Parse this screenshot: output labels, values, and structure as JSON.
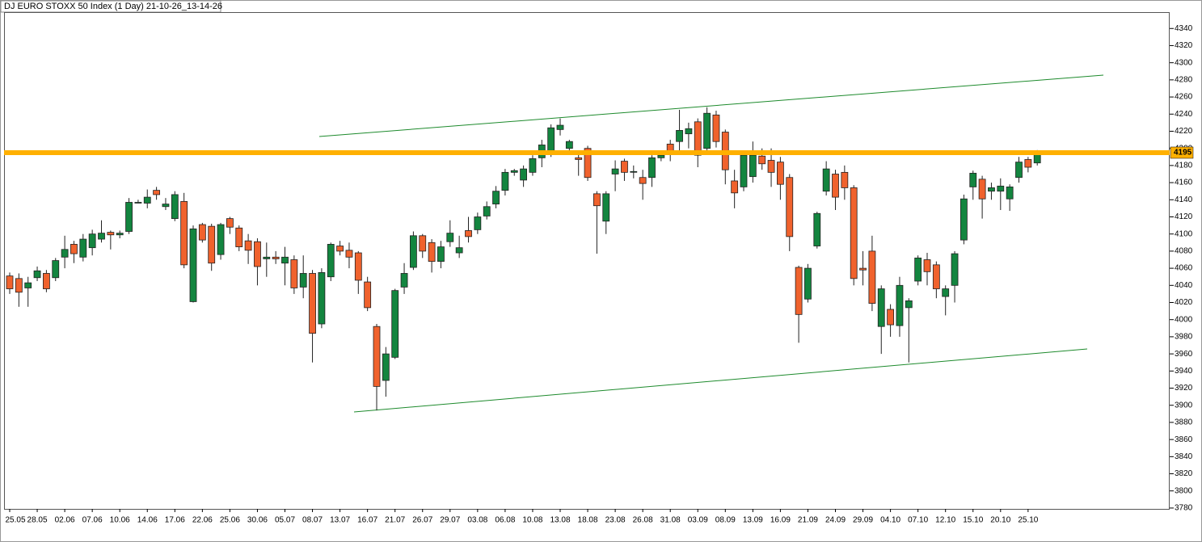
{
  "chart_data": {
    "type": "candlestick",
    "title": "DJ EURO STOXX 50 Index (1 Day) 21-10-26_13-14-26",
    "categories": [
      "25.05",
      null,
      null,
      "28.05",
      null,
      null,
      "02.06",
      null,
      null,
      "07.06",
      null,
      null,
      "10.06",
      null,
      null,
      "14.06",
      null,
      null,
      "17.06",
      null,
      null,
      "22.06",
      null,
      null,
      "25.06",
      null,
      null,
      "30.06",
      null,
      null,
      "05.07",
      null,
      null,
      "08.07",
      null,
      null,
      "13.07",
      null,
      null,
      "16.07",
      null,
      null,
      "21.07",
      null,
      null,
      "26.07",
      null,
      null,
      "29.07",
      null,
      null,
      "03.08",
      null,
      null,
      "06.08",
      null,
      null,
      "10.08",
      null,
      null,
      "13.08",
      null,
      null,
      "18.08",
      null,
      null,
      "23.08",
      null,
      null,
      "26.08",
      null,
      null,
      "31.08",
      null,
      null,
      "03.09",
      null,
      null,
      "08.09",
      null,
      null,
      "13.09",
      null,
      null,
      "16.09",
      null,
      null,
      "21.09",
      null,
      null,
      "24.09",
      null,
      null,
      "29.09",
      null,
      null,
      "04.10",
      null,
      null,
      "07.10",
      null,
      null,
      "12.10",
      null,
      null,
      "15.10",
      null,
      null,
      "20.10",
      null,
      null,
      "25.10",
      null
    ],
    "open": [
      4051,
      4048,
      4037,
      4049,
      4054,
      4049,
      4073,
      4088,
      4073,
      4084,
      4094,
      4102,
      4099,
      4103,
      4137,
      4136,
      4151,
      4132,
      4118,
      4138,
      4021,
      4111,
      4109,
      4076,
      4118,
      4107,
      4092,
      4091,
      4071,
      4073,
      4066,
      4070,
      4038,
      4054,
      3995,
      4050,
      4086,
      4081,
      4078,
      4044,
      3992,
      3929,
      3956,
      4038,
      4061,
      4098,
      4090,
      4068,
      4091,
      4078,
      4104,
      4105,
      4121,
      4135,
      4151,
      4172,
      4163,
      4172,
      4189,
      4197,
      4222,
      4200,
      4189,
      4200,
      4147,
      4115,
      4170,
      4185,
      4173,
      4166,
      4166,
      4189,
      4205,
      4208,
      4217,
      4231,
      4200,
      4239,
      4219,
      4162,
      4155,
      4167,
      4191,
      4186,
      4184,
      4166,
      4061,
      4024,
      4086,
      4150,
      4170,
      4172,
      4154,
      4060,
      4080,
      3992,
      4012,
      3993,
      4014,
      4045,
      4070,
      4064,
      4027,
      4040,
      4093,
      4155,
      4164,
      4150,
      4150,
      4141,
      4166,
      4187,
      4183
    ],
    "high": [
      4055,
      4054,
      4050,
      4062,
      4058,
      4072,
      4098,
      4092,
      4100,
      4105,
      4116,
      4104,
      4104,
      4142,
      4140,
      4152,
      4155,
      4142,
      4150,
      4148,
      4110,
      4113,
      4112,
      4113,
      4120,
      4110,
      4100,
      4095,
      4090,
      4080,
      4085,
      4075,
      4075,
      4058,
      4060,
      4090,
      4092,
      4090,
      4080,
      4050,
      3995,
      3968,
      4036,
      4066,
      4103,
      4100,
      4094,
      4092,
      4116,
      4098,
      4120,
      4125,
      4138,
      4156,
      4176,
      4176,
      4180,
      4192,
      4210,
      4228,
      4235,
      4210,
      4196,
      4203,
      4150,
      4150,
      4186,
      4188,
      4180,
      4175,
      4192,
      4195,
      4210,
      4245,
      4230,
      4235,
      4248,
      4244,
      4222,
      4175,
      4195,
      4208,
      4200,
      4200,
      4190,
      4170,
      4063,
      4065,
      4126,
      4185,
      4175,
      4180,
      4157,
      4080,
      4098,
      4040,
      4018,
      4050,
      4025,
      4075,
      4078,
      4068,
      4040,
      4080,
      4146,
      4174,
      4168,
      4160,
      4165,
      4158,
      4190,
      4190,
      4198
    ],
    "low": [
      4030,
      4015,
      4015,
      4045,
      4032,
      4045,
      4060,
      4066,
      4068,
      4075,
      4090,
      4082,
      4095,
      4100,
      4136,
      4130,
      4140,
      4128,
      4115,
      4060,
      4020,
      4090,
      4057,
      4070,
      4100,
      4080,
      4065,
      4040,
      4050,
      4065,
      4040,
      4030,
      4025,
      3950,
      3990,
      4045,
      4075,
      4060,
      4030,
      4010,
      3894,
      3910,
      3954,
      4030,
      4058,
      4072,
      4055,
      4060,
      4085,
      4072,
      4090,
      4100,
      4117,
      4130,
      4145,
      4168,
      4155,
      4168,
      4178,
      4190,
      4215,
      4195,
      4168,
      4162,
      4077,
      4100,
      4150,
      4162,
      4165,
      4140,
      4155,
      4185,
      4185,
      4195,
      4200,
      4178,
      4195,
      4201,
      4158,
      4130,
      4150,
      4160,
      4175,
      4155,
      4140,
      4080,
      3973,
      4020,
      4083,
      4145,
      4128,
      4140,
      4040,
      4040,
      4010,
      3960,
      3980,
      3980,
      3950,
      4040,
      4040,
      4025,
      4005,
      4020,
      4088,
      4140,
      4118,
      4140,
      4128,
      4127,
      4160,
      4172,
      4180
    ],
    "close": [
      4036,
      4032,
      4043,
      4057,
      4036,
      4069,
      4082,
      4077,
      4094,
      4100,
      4101,
      4099,
      4101,
      4137,
      4137,
      4143,
      4146,
      4135,
      4146,
      4064,
      4106,
      4093,
      4066,
      4111,
      4108,
      4085,
      4081,
      4062,
      4073,
      4071,
      4073,
      4037,
      4054,
      3984,
      4055,
      4088,
      4080,
      4073,
      4046,
      4014,
      3922,
      3960,
      4034,
      4054,
      4098,
      4080,
      4068,
      4085,
      4101,
      4084,
      4097,
      4120,
      4132,
      4150,
      4172,
      4174,
      4176,
      4188,
      4204,
      4224,
      4227,
      4208,
      4187,
      4166,
      4133,
      4147,
      4176,
      4172,
      4173,
      4159,
      4189,
      4192,
      4195,
      4221,
      4223,
      4192,
      4241,
      4208,
      4175,
      4148,
      4192,
      4192,
      4182,
      4172,
      4158,
      4097,
      4006,
      4060,
      4124,
      4176,
      4143,
      4154,
      4048,
      4058,
      4019,
      4036,
      3994,
      4040,
      4022,
      4072,
      4056,
      4036,
      4036,
      4077,
      4141,
      4171,
      4141,
      4154,
      4156,
      4155,
      4184,
      4178,
      4195
    ],
    "up_color": "#13853f",
    "down_color": "#f0622d",
    "hline": {
      "value": 4195,
      "color": "#ffb000"
    },
    "ylim": [
      3779,
      4361
    ],
    "yticks": [
      3780,
      3800,
      3820,
      3840,
      3860,
      3880,
      3900,
      3920,
      3940,
      3960,
      3980,
      4000,
      4020,
      4040,
      4060,
      4080,
      4100,
      4120,
      4140,
      4160,
      4180,
      4200,
      4220,
      4240,
      4260,
      4280,
      4300,
      4320,
      4340
    ]
  }
}
